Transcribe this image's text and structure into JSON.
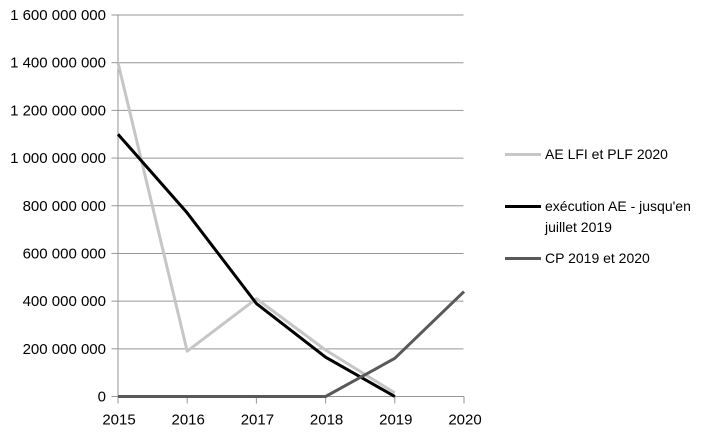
{
  "chart_data": {
    "type": "line",
    "categories": [
      "2015",
      "2016",
      "2017",
      "2018",
      "2019",
      "2020"
    ],
    "series": [
      {
        "name": "AE LFI et PLF 2020",
        "color": "#c6c6c6",
        "values": [
          1400000000,
          190000000,
          410000000,
          195000000,
          15000000,
          null
        ]
      },
      {
        "name": "exécution AE - jusqu'en juillet 2019",
        "color": "#000000",
        "values": [
          1100000000,
          770000000,
          390000000,
          165000000,
          0,
          null
        ]
      },
      {
        "name": "CP 2019 et 2020",
        "color": "#595959",
        "values": [
          0,
          0,
          0,
          0,
          160000000,
          440000000
        ]
      }
    ],
    "ylim": [
      0,
      1600000000
    ],
    "ytick_step": 200000000,
    "ytick_labels": [
      "0",
      "200 000 000",
      "400 000 000",
      "600 000 000",
      "800 000 000",
      "1 000 000 000",
      "1 200 000 000",
      "1 400 000 000",
      "1 600 000 000"
    ],
    "grid": true,
    "legend_position": "right",
    "line_width": 3,
    "axis_color": "#969696",
    "text_color": "#000000",
    "background_color": "#ffffff"
  }
}
